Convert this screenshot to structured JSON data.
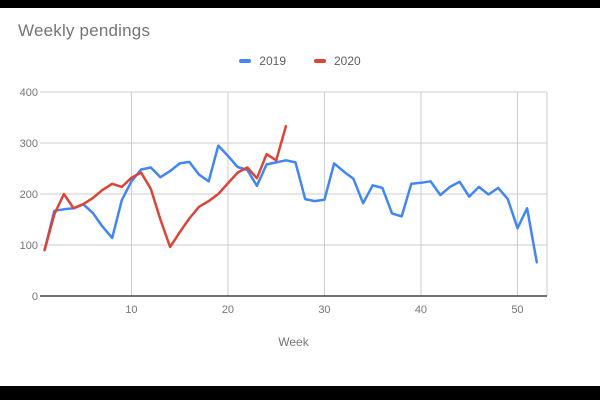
{
  "title": "Weekly pendings",
  "colors": {
    "series_2019": "#4285F4",
    "series_2020": "#DB4437",
    "grid": "#cccccc",
    "axis_line": "#424242",
    "tick_text": "#757575",
    "legend_text": "#5f5f5f",
    "background": "#ffffff",
    "letterbox": "#000000"
  },
  "legend": [
    {
      "label": "2019",
      "color": "#4285F4"
    },
    {
      "label": "2020",
      "color": "#DB4437"
    }
  ],
  "chart_data": {
    "type": "line",
    "title": "Weekly pendings",
    "xlabel": "Week",
    "ylabel": "",
    "xlim": [
      1,
      53
    ],
    "ylim": [
      0,
      400
    ],
    "x_ticks": [
      10,
      20,
      30,
      40,
      50
    ],
    "y_ticks": [
      0,
      100,
      200,
      300,
      400
    ],
    "grid": true,
    "legend_position": "top-center",
    "series": [
      {
        "name": "2019",
        "color": "#4285F4",
        "x": [
          1,
          2,
          3,
          4,
          5,
          6,
          7,
          8,
          9,
          10,
          11,
          12,
          13,
          14,
          15,
          16,
          17,
          18,
          19,
          20,
          21,
          22,
          23,
          24,
          25,
          26,
          27,
          28,
          29,
          30,
          31,
          32,
          33,
          34,
          35,
          36,
          37,
          38,
          39,
          40,
          41,
          42,
          43,
          44,
          45,
          46,
          47,
          48,
          49,
          50,
          51,
          52
        ],
        "values": [
          90,
          167,
          170,
          172,
          180,
          163,
          136,
          114,
          188,
          225,
          248,
          252,
          233,
          245,
          260,
          263,
          238,
          225,
          295,
          275,
          253,
          247,
          216,
          258,
          262,
          266,
          262,
          190,
          186,
          189,
          260,
          244,
          230,
          182,
          217,
          212,
          162,
          156,
          220,
          222,
          225,
          198,
          214,
          224,
          195,
          214,
          199,
          212,
          190,
          133,
          172,
          66
        ]
      },
      {
        "name": "2020",
        "color": "#DB4437",
        "x": [
          1,
          2,
          3,
          4,
          5,
          6,
          7,
          8,
          9,
          10,
          11,
          12,
          13,
          14,
          15,
          16,
          17,
          18,
          19,
          20,
          21,
          22,
          23,
          24,
          25,
          26
        ],
        "values": [
          90,
          160,
          200,
          172,
          180,
          192,
          208,
          220,
          214,
          232,
          242,
          210,
          150,
          96,
          125,
          152,
          175,
          186,
          200,
          221,
          242,
          252,
          231,
          278,
          266,
          333
        ]
      }
    ]
  }
}
